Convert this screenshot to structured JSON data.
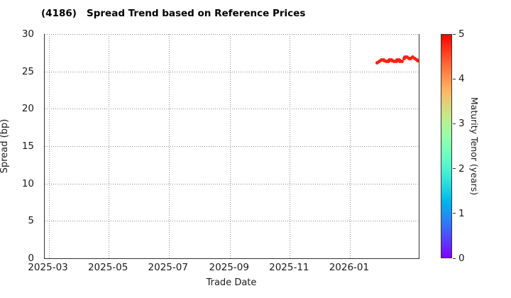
{
  "chart_data": {
    "type": "scatter",
    "title": "(4186)   Spread Trend based on Reference Prices",
    "xlabel": "Trade Date",
    "ylabel": "Spread (bp)",
    "colorbar_label": "Maturity Tenor (years)",
    "colormap": "rainbow",
    "point_color": "#ff1405",
    "grid": "dotted",
    "xlim": [
      "2025-02-25",
      "2026-03-12"
    ],
    "ylim": [
      0,
      30
    ],
    "clim": [
      0,
      5
    ],
    "yticks": [
      0,
      5,
      10,
      15,
      20,
      25,
      30
    ],
    "xticks": [
      {
        "label": "2025-03",
        "date": "2025-03-01"
      },
      {
        "label": "2025-05",
        "date": "2025-05-01"
      },
      {
        "label": "2025-07",
        "date": "2025-07-01"
      },
      {
        "label": "2025-09",
        "date": "2025-09-01"
      },
      {
        "label": "2025-11",
        "date": "2025-11-01"
      },
      {
        "label": "2026-01",
        "date": "2026-01-01"
      }
    ],
    "colorbar_ticks": [
      0,
      1,
      2,
      3,
      4,
      5
    ],
    "maturity_tenor_years": 4.8,
    "points": [
      {
        "date": "2026-01-29",
        "spread_bp": 26.2
      },
      {
        "date": "2026-01-31",
        "spread_bp": 26.34
      },
      {
        "date": "2026-02-02",
        "spread_bp": 26.53
      },
      {
        "date": "2026-02-04",
        "spread_bp": 26.58
      },
      {
        "date": "2026-02-05",
        "spread_bp": 26.44
      },
      {
        "date": "2026-02-07",
        "spread_bp": 26.3
      },
      {
        "date": "2026-02-09",
        "spread_bp": 26.39
      },
      {
        "date": "2026-02-10",
        "spread_bp": 26.58
      },
      {
        "date": "2026-02-12",
        "spread_bp": 26.53
      },
      {
        "date": "2026-02-13",
        "spread_bp": 26.44
      },
      {
        "date": "2026-02-15",
        "spread_bp": 26.3
      },
      {
        "date": "2026-02-17",
        "spread_bp": 26.39
      },
      {
        "date": "2026-02-18",
        "spread_bp": 26.58
      },
      {
        "date": "2026-02-20",
        "spread_bp": 26.53
      },
      {
        "date": "2026-02-21",
        "spread_bp": 26.39
      },
      {
        "date": "2026-02-23",
        "spread_bp": 26.3
      },
      {
        "date": "2026-02-25",
        "spread_bp": 26.72
      },
      {
        "date": "2026-02-26",
        "spread_bp": 26.96
      },
      {
        "date": "2026-02-28",
        "spread_bp": 26.87
      },
      {
        "date": "2026-03-02",
        "spread_bp": 26.77
      },
      {
        "date": "2026-03-04",
        "spread_bp": 26.68
      },
      {
        "date": "2026-03-06",
        "spread_bp": 26.96
      },
      {
        "date": "2026-03-08",
        "spread_bp": 26.77
      },
      {
        "date": "2026-03-10",
        "spread_bp": 26.55
      },
      {
        "date": "2026-03-11",
        "spread_bp": 26.44
      }
    ]
  }
}
